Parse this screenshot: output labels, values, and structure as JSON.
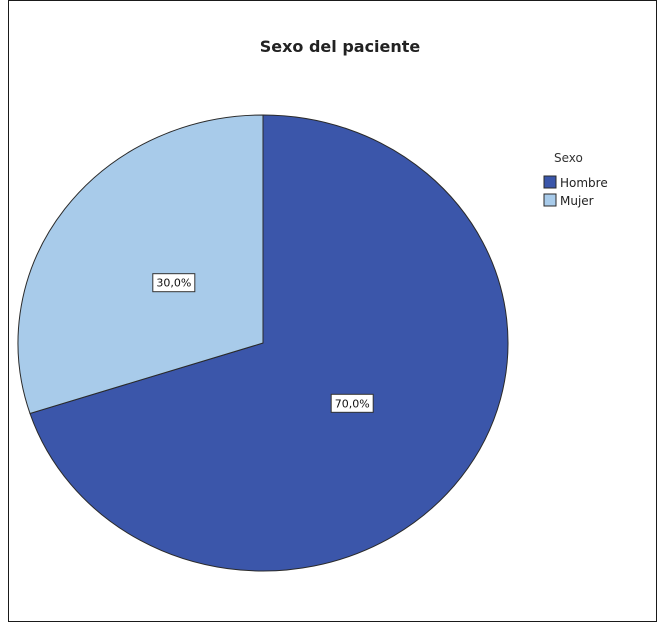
{
  "chart_data": {
    "type": "pie",
    "title": "Sexo del paciente",
    "legend_title": "Sexo",
    "legend_position": "top-right",
    "slices": [
      {
        "name": "Hombre",
        "value": 70.0,
        "label": "70,0%",
        "color": "#3B56AA"
      },
      {
        "name": "Mujer",
        "value": 30.0,
        "label": "30,0%",
        "color": "#A8CBEA"
      }
    ]
  }
}
